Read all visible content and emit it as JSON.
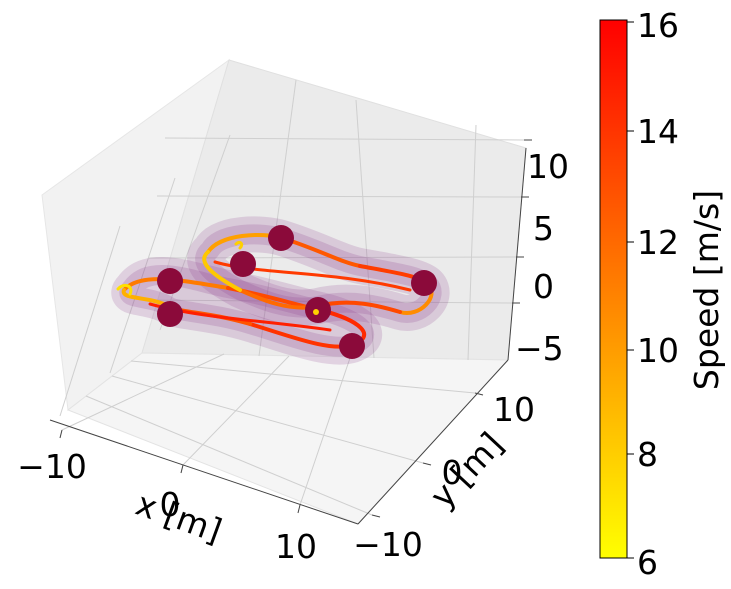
{
  "chart_data": {
    "type": "line",
    "projection": "3d",
    "title": "",
    "xlabel": "x [m]",
    "ylabel": "y [m]",
    "zlabel": "",
    "xlim": [
      -13,
      15
    ],
    "ylim": [
      -13,
      15
    ],
    "zlim": [
      -7,
      12
    ],
    "xticks": [
      "−10",
      "0",
      "10"
    ],
    "yticks": [
      "−10",
      "0",
      "10"
    ],
    "zticks": [
      "−5",
      "0",
      "5",
      "10"
    ],
    "grid": true,
    "trajectory": {
      "description": "closed 3D loop colored by speed, surrounded by a translucent purple tube",
      "tube_color": "#8b3a8b"
    },
    "gates": {
      "color": "#8b0a3a",
      "count": 8
    },
    "colorbar": {
      "label": "Speed [m/s]",
      "min": 6,
      "max": 16,
      "ticks": [
        "6",
        "8",
        "10",
        "12",
        "14",
        "16"
      ],
      "colormap": "autumn_r",
      "color_low": "#ffff00",
      "color_high": "#ff0000"
    }
  }
}
